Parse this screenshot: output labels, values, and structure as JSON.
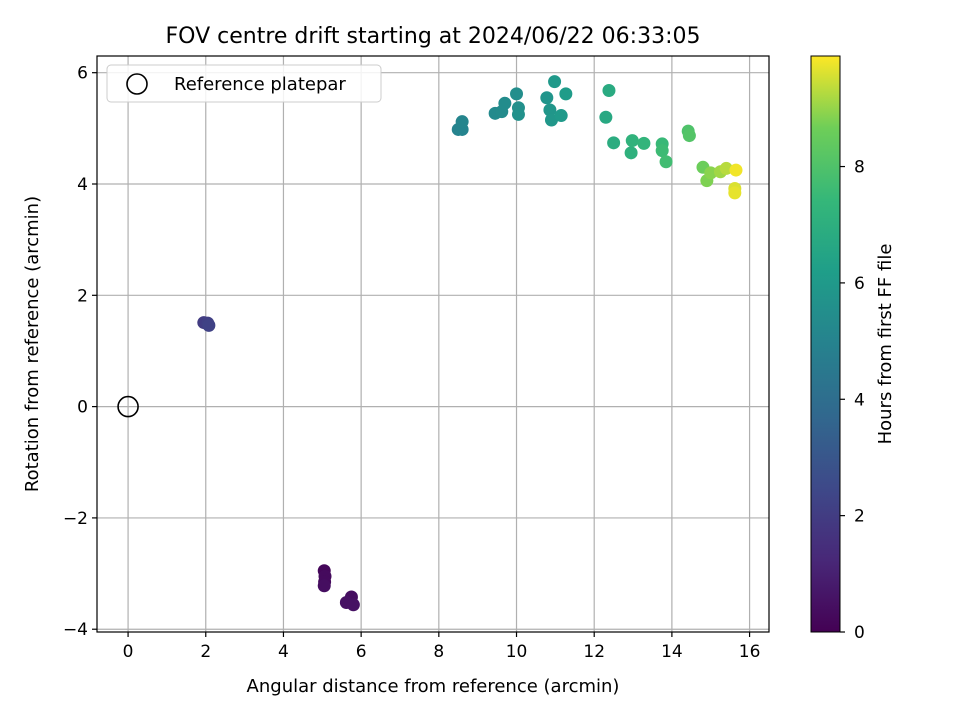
{
  "chart_data": {
    "type": "scatter",
    "title": "FOV centre drift starting at 2024/06/22 06:33:05",
    "xlabel": "Angular distance from reference (arcmin)",
    "ylabel": "Rotation from reference (arcmin)",
    "xlim": [
      -0.8,
      16.5
    ],
    "ylim": [
      -4.05,
      6.3
    ],
    "x_ticks": [
      0,
      2,
      4,
      6,
      8,
      10,
      12,
      14,
      16
    ],
    "y_ticks": [
      -4,
      -2,
      0,
      2,
      4,
      6
    ],
    "x_tick_labels": [
      "0",
      "2",
      "4",
      "6",
      "8",
      "10",
      "12",
      "14",
      "16"
    ],
    "y_tick_labels": [
      "−4",
      "−2",
      "0",
      "2",
      "4",
      "6"
    ],
    "grid": true,
    "legend": {
      "position": "upper-left",
      "entries": [
        "Reference platepar"
      ]
    },
    "reference_point": {
      "x": 0,
      "y": 0,
      "label": "Reference platepar"
    },
    "colorbar": {
      "label": "Hours from first FF file",
      "range": [
        0,
        9.9
      ],
      "ticks": [
        0,
        2,
        4,
        6,
        8
      ],
      "tick_labels": [
        "0",
        "2",
        "4",
        "6",
        "8"
      ],
      "colormap": "viridis"
    },
    "points": [
      {
        "x": 5.05,
        "y": -2.95,
        "c": 0.2
      },
      {
        "x": 5.07,
        "y": -3.05,
        "c": 0.3
      },
      {
        "x": 5.06,
        "y": -3.15,
        "c": 0.3
      },
      {
        "x": 5.05,
        "y": -3.22,
        "c": 0.4
      },
      {
        "x": 5.75,
        "y": -3.42,
        "c": 0.4
      },
      {
        "x": 5.62,
        "y": -3.52,
        "c": 0.5
      },
      {
        "x": 5.8,
        "y": -3.56,
        "c": 0.5
      },
      {
        "x": 1.95,
        "y": 1.51,
        "c": 2.0
      },
      {
        "x": 2.05,
        "y": 1.5,
        "c": 2.1
      },
      {
        "x": 2.08,
        "y": 1.46,
        "c": 2.2
      },
      {
        "x": 8.5,
        "y": 4.98,
        "c": 5.0
      },
      {
        "x": 8.6,
        "y": 4.98,
        "c": 5.05
      },
      {
        "x": 8.6,
        "y": 5.12,
        "c": 5.1
      },
      {
        "x": 9.45,
        "y": 5.27,
        "c": 5.3
      },
      {
        "x": 9.62,
        "y": 5.3,
        "c": 5.35
      },
      {
        "x": 9.7,
        "y": 5.45,
        "c": 5.4
      },
      {
        "x": 10.0,
        "y": 5.62,
        "c": 5.5
      },
      {
        "x": 10.05,
        "y": 5.37,
        "c": 5.55
      },
      {
        "x": 10.05,
        "y": 5.25,
        "c": 5.6
      },
      {
        "x": 10.78,
        "y": 5.55,
        "c": 5.8
      },
      {
        "x": 10.86,
        "y": 5.33,
        "c": 5.85
      },
      {
        "x": 10.9,
        "y": 5.15,
        "c": 5.9
      },
      {
        "x": 10.98,
        "y": 5.84,
        "c": 5.95
      },
      {
        "x": 11.15,
        "y": 5.23,
        "c": 6.0
      },
      {
        "x": 11.27,
        "y": 5.62,
        "c": 6.1
      },
      {
        "x": 12.3,
        "y": 5.2,
        "c": 6.7
      },
      {
        "x": 12.38,
        "y": 5.68,
        "c": 6.8
      },
      {
        "x": 12.5,
        "y": 4.74,
        "c": 6.9
      },
      {
        "x": 12.95,
        "y": 4.56,
        "c": 7.1
      },
      {
        "x": 12.98,
        "y": 4.78,
        "c": 7.2
      },
      {
        "x": 13.28,
        "y": 4.73,
        "c": 7.3
      },
      {
        "x": 13.75,
        "y": 4.72,
        "c": 7.5
      },
      {
        "x": 13.75,
        "y": 4.6,
        "c": 7.6
      },
      {
        "x": 13.85,
        "y": 4.4,
        "c": 7.7
      },
      {
        "x": 14.42,
        "y": 4.95,
        "c": 8.0
      },
      {
        "x": 14.45,
        "y": 4.87,
        "c": 8.1
      },
      {
        "x": 14.8,
        "y": 4.3,
        "c": 8.6
      },
      {
        "x": 14.9,
        "y": 4.06,
        "c": 8.8
      },
      {
        "x": 15.0,
        "y": 4.2,
        "c": 8.9
      },
      {
        "x": 15.25,
        "y": 4.22,
        "c": 9.1
      },
      {
        "x": 15.4,
        "y": 4.28,
        "c": 9.3
      },
      {
        "x": 15.62,
        "y": 3.92,
        "c": 9.6
      },
      {
        "x": 15.62,
        "y": 3.84,
        "c": 9.7
      },
      {
        "x": 15.65,
        "y": 4.25,
        "c": 9.8
      }
    ]
  }
}
